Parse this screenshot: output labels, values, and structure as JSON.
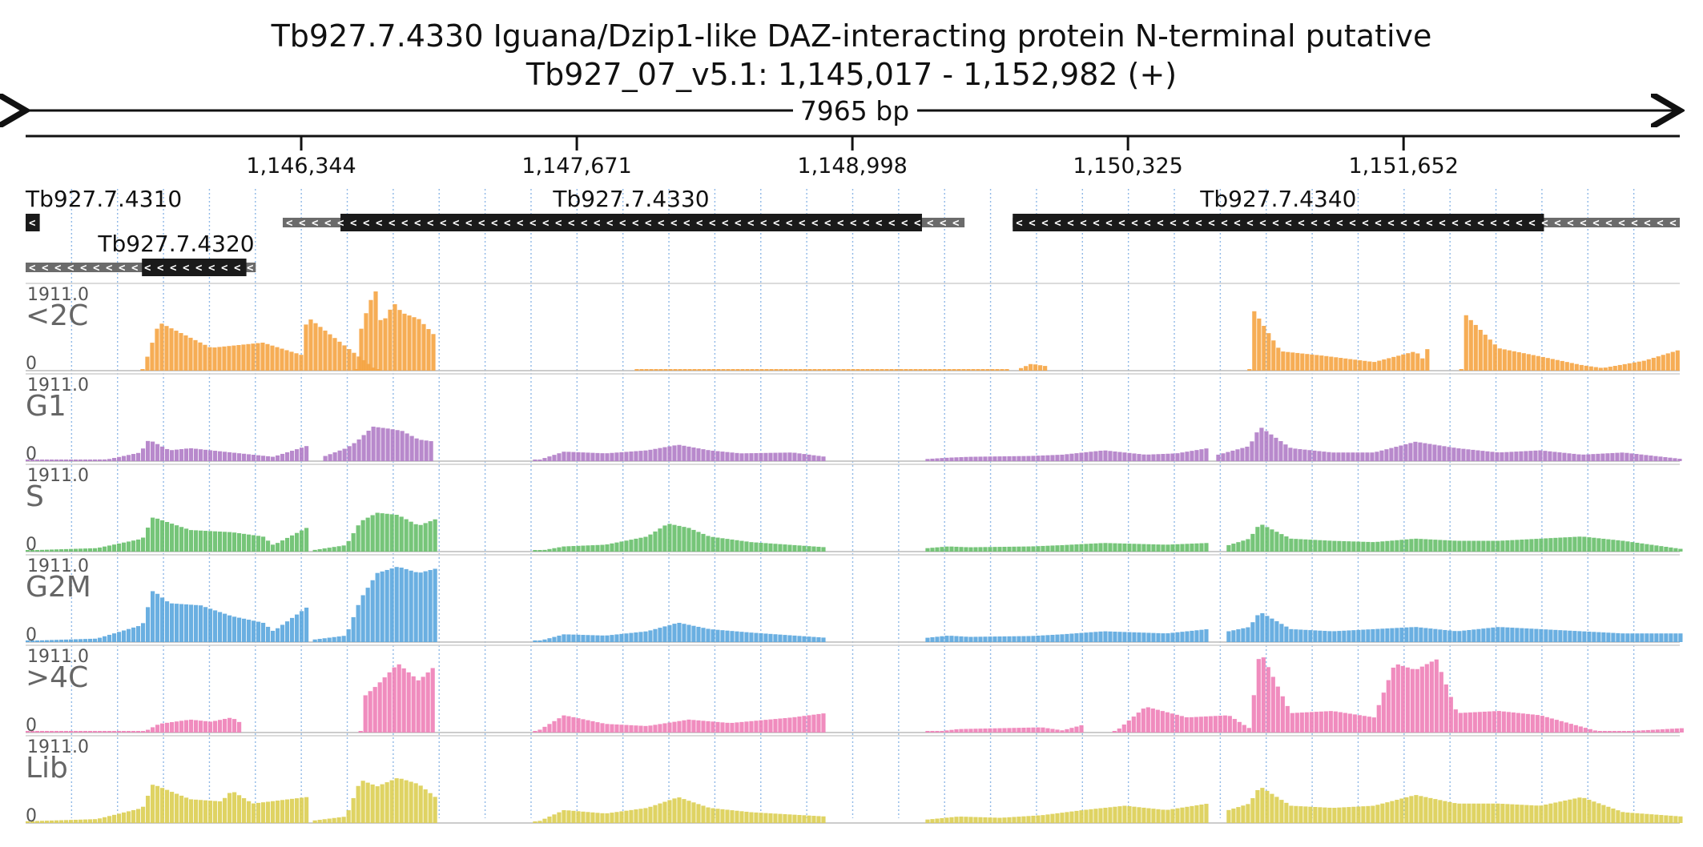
{
  "header": {
    "title_line1": "Tb927.7.4330  Iguana/Dzip1-like DAZ-interacting protein N-terminal  putative",
    "title_line2": "Tb927_07_v5.1: 1,145,017 - 1,152,982 (+)",
    "span_label": "7965 bp"
  },
  "chart_data": {
    "type": "area",
    "region": {
      "chrom": "Tb927_07_v5.1",
      "start": 1145017,
      "end": 1152982,
      "strand": "+"
    },
    "xlim": [
      1145017,
      1152982
    ],
    "x_ticks": [
      1146344,
      1147671,
      1148998,
      1150325,
      1151652
    ],
    "x_tick_labels": [
      "1,146,344",
      "1,147,671",
      "1,148,998",
      "1,150,325",
      "1,151,652"
    ],
    "genes": [
      {
        "name": "Tb927.7.4310",
        "strand": "-",
        "row": 0,
        "cds": [
          1145017,
          1145085
        ],
        "utr": []
      },
      {
        "name": "Tb927.7.4330",
        "strand": "-",
        "row": 0,
        "cds": [
          1146533,
          1149333
        ],
        "utr": [
          1146255,
          1149538
        ]
      },
      {
        "name": "Tb927.7.4340",
        "strand": "-",
        "row": 0,
        "cds": [
          1149770,
          1152328
        ],
        "utr": [
          1149770,
          1152982
        ]
      },
      {
        "name": "Tb927.7.4320",
        "strand": "-",
        "row": 1,
        "cds": [
          1145577,
          1146080
        ],
        "utr": [
          1145017,
          1146125
        ]
      }
    ],
    "tracks": [
      {
        "name": "<2C",
        "max_label": "1911.0",
        "min_label": "0",
        "color": "#f5a442",
        "segments": [
          {
            "x": [
              1145570,
              1145650,
              1145900,
              1146150,
              1146345,
              1146360,
              1146700,
              1146720
            ],
            "y": [
              0,
              1120,
              530,
              650,
              350,
              1260,
              0,
              0
            ]
          },
          {
            "x": [
              1146600,
              1146625,
              1146690,
              1146720,
              1146780,
              1146820,
              1146900,
              1146980
            ],
            "y": [
              0,
              1050,
              1910,
              1050,
              1570,
              1340,
              1200,
              800
            ]
          },
          {
            "x": [
              1147950,
              1148100,
              1148400,
              1148600,
              1148750,
              1149000,
              1149400,
              1149750
            ],
            "y": [
              0,
              0,
              0,
              0,
              0,
              0,
              0,
              0
            ]
          },
          {
            "x": [
              1149800,
              1149850,
              1149900,
              1149930
            ],
            "y": [
              60,
              160,
              120,
              100
            ]
          },
          {
            "x": [
              1150900,
              1150920,
              1151050,
              1151250,
              1151500,
              1151700,
              1151750,
              1151770
            ],
            "y": [
              0,
              1400,
              450,
              350,
              200,
              450,
              200,
              1150
            ]
          },
          {
            "x": [
              1151920,
              1151940,
              1152100,
              1152300,
              1152500,
              1152600,
              1152800,
              1152982
            ],
            "y": [
              0,
              1300,
              520,
              330,
              130,
              60,
              230,
              500
            ]
          }
        ]
      },
      {
        "name": "G1",
        "max_label": "1911.0",
        "min_label": "0",
        "color": "#b07cc6",
        "segments": [
          {
            "x": [
              1145017,
              1145100,
              1145400,
              1145560,
              1145600,
              1145700,
              1145800,
              1146000,
              1146200,
              1146360
            ],
            "y": [
              20,
              30,
              40,
              200,
              500,
              250,
              300,
              200,
              100,
              350
            ]
          },
          {
            "x": [
              1146450,
              1146550,
              1146600,
              1146680,
              1146760,
              1146820,
              1146900,
              1146980
            ],
            "y": [
              120,
              300,
              450,
              800,
              750,
              700,
              500,
              450
            ]
          },
          {
            "x": [
              1147460,
              1147600,
              1147800,
              1148000,
              1148150,
              1148300,
              1148450,
              1148700,
              1148860
            ],
            "y": [
              0,
              220,
              180,
              250,
              380,
              250,
              180,
              200,
              100
            ]
          },
          {
            "x": [
              1149350,
              1149450,
              1149550,
              1149850,
              1150000,
              1150200,
              1150400,
              1150550,
              1150700
            ],
            "y": [
              50,
              80,
              100,
              120,
              150,
              250,
              150,
              180,
              300
            ]
          },
          {
            "x": [
              1150750,
              1150900,
              1150950,
              1151100,
              1151300,
              1151500,
              1151700,
              1151900,
              1152100,
              1152300,
              1152500,
              1152700,
              1152982
            ],
            "y": [
              150,
              350,
              800,
              300,
              200,
              200,
              450,
              300,
              200,
              250,
              150,
              200,
              50
            ]
          }
        ]
      },
      {
        "name": "S",
        "max_label": "1911.0",
        "min_label": "0",
        "color": "#67bf6a",
        "segments": [
          {
            "x": [
              1145017,
              1145150,
              1145350,
              1145570,
              1145620,
              1145800,
              1146000,
              1146150,
              1146200,
              1146360
            ],
            "y": [
              30,
              50,
              80,
              300,
              800,
              500,
              450,
              350,
              150,
              550
            ]
          },
          {
            "x": [
              1146400,
              1146550,
              1146620,
              1146700,
              1146800,
              1146900,
              1146980
            ],
            "y": [
              40,
              150,
              700,
              900,
              850,
              600,
              750
            ]
          },
          {
            "x": [
              1147460,
              1147600,
              1147800,
              1148000,
              1148100,
              1148200,
              1148300,
              1148500,
              1148860
            ],
            "y": [
              0,
              120,
              160,
              350,
              650,
              550,
              350,
              220,
              100
            ]
          },
          {
            "x": [
              1149350,
              1149450,
              1149550,
              1149850,
              1150000,
              1150200,
              1150500,
              1150700
            ],
            "y": [
              80,
              120,
              100,
              120,
              150,
              200,
              160,
              200
            ]
          },
          {
            "x": [
              1150800,
              1150900,
              1150950,
              1151100,
              1151300,
              1151500,
              1151700,
              1151900,
              1152100,
              1152300,
              1152500,
              1152700,
              1152982
            ],
            "y": [
              150,
              300,
              650,
              300,
              250,
              220,
              300,
              250,
              250,
              300,
              350,
              250,
              60
            ]
          }
        ]
      },
      {
        "name": "G2M",
        "max_label": "1911.0",
        "min_label": "0",
        "color": "#5aa6de",
        "segments": [
          {
            "x": [
              1145017,
              1145150,
              1145350,
              1145570,
              1145620,
              1145700,
              1145850,
              1146000,
              1146150,
              1146200,
              1146360
            ],
            "y": [
              30,
              50,
              80,
              400,
              1200,
              900,
              850,
              600,
              450,
              250,
              800
            ]
          },
          {
            "x": [
              1146400,
              1146550,
              1146620,
              1146700,
              1146800,
              1146900,
              1146980
            ],
            "y": [
              60,
              150,
              1000,
              1600,
              1750,
              1600,
              1700
            ]
          },
          {
            "x": [
              1147460,
              1147600,
              1147800,
              1148000,
              1148150,
              1148300,
              1148500,
              1148860
            ],
            "y": [
              0,
              180,
              150,
              250,
              450,
              300,
              220,
              100
            ]
          },
          {
            "x": [
              1149350,
              1149450,
              1149550,
              1149850,
              1150000,
              1150200,
              1150500,
              1150700
            ],
            "y": [
              100,
              150,
              120,
              140,
              180,
              250,
              200,
              300
            ]
          },
          {
            "x": [
              1150800,
              1150900,
              1150950,
              1151100,
              1151300,
              1151500,
              1151700,
              1151900,
              1152100,
              1152300,
              1152500,
              1152700,
              1152982
            ],
            "y": [
              250,
              350,
              700,
              300,
              250,
              300,
              350,
              250,
              350,
              300,
              250,
              200,
              200
            ]
          }
        ]
      },
      {
        "name": ">4C",
        "max_label": "1911.0",
        "min_label": "0",
        "color": "#ee7fb7",
        "segments": [
          {
            "x": [
              1145017,
              1145300,
              1145570,
              1145650,
              1145800,
              1145900,
              1146000,
              1146050
            ],
            "y": [
              0,
              0,
              0,
              200,
              300,
              250,
              350,
              200
            ]
          },
          {
            "x": [
              1146620,
              1146640,
              1146700,
              1146800,
              1146900,
              1146980
            ],
            "y": [
              0,
              850,
              1100,
              1600,
              1200,
              1550
            ]
          },
          {
            "x": [
              1147460,
              1147600,
              1147800,
              1148000,
              1148200,
              1148400,
              1148700,
              1148860
            ],
            "y": [
              0,
              400,
              200,
              150,
              300,
              220,
              350,
              450
            ]
          },
          {
            "x": [
              1149350,
              1149500,
              1149700,
              1149900,
              1150000,
              1150100
            ],
            "y": [
              0,
              80,
              100,
              120,
              50,
              180
            ]
          },
          {
            "x": [
              1150250,
              1150400,
              1150600,
              1150800,
              1150900,
              1150950,
              1151100,
              1151300,
              1151500,
              1151600,
              1151700,
              1151800,
              1151900,
              1152100,
              1152300,
              1152600,
              1152982
            ],
            "y": [
              0,
              600,
              350,
              400,
              100,
              1911,
              450,
              500,
              350,
              1600,
              1450,
              1700,
              450,
              500,
              400,
              0,
              100
            ]
          }
        ]
      },
      {
        "name": "Lib",
        "max_label": "1911.0",
        "min_label": "0",
        "color": "#dcce52",
        "segments": [
          {
            "x": [
              1145017,
              1145150,
              1145350,
              1145570,
              1145620,
              1145800,
              1145950,
              1146000,
              1146100,
              1146360
            ],
            "y": [
              40,
              60,
              90,
              350,
              900,
              550,
              500,
              750,
              450,
              600
            ]
          },
          {
            "x": [
              1146400,
              1146550,
              1146620,
              1146700,
              1146800,
              1146900,
              1146980
            ],
            "y": [
              60,
              150,
              1000,
              850,
              1050,
              900,
              600
            ]
          },
          {
            "x": [
              1147460,
              1147600,
              1147800,
              1148000,
              1148150,
              1148300,
              1148500,
              1148860
            ],
            "y": [
              0,
              300,
              220,
              350,
              600,
              350,
              250,
              150
            ]
          },
          {
            "x": [
              1149350,
              1149500,
              1149700,
              1149900,
              1150100,
              1150300,
              1150500,
              1150700
            ],
            "y": [
              80,
              150,
              120,
              180,
              300,
              400,
              300,
              450
            ]
          },
          {
            "x": [
              1150800,
              1150900,
              1150950,
              1151100,
              1151300,
              1151500,
              1151700,
              1151900,
              1152100,
              1152300,
              1152500,
              1152700,
              1152982
            ],
            "y": [
              300,
              450,
              850,
              400,
              350,
              400,
              650,
              450,
              450,
              400,
              600,
              250,
              150
            ]
          }
        ]
      }
    ]
  }
}
